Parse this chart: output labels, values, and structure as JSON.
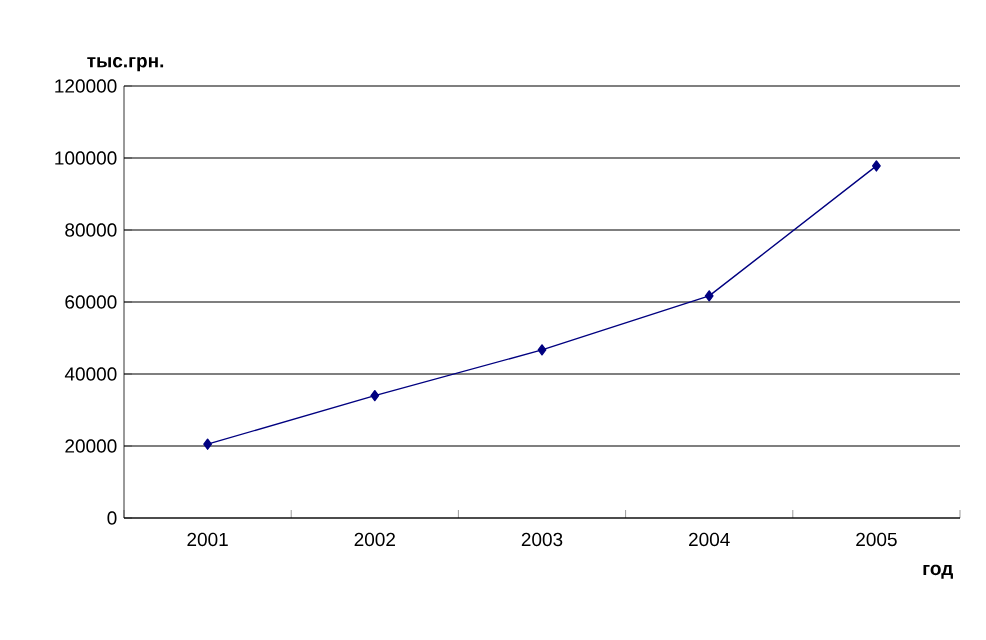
{
  "chart_data": {
    "type": "line",
    "xlabel": "год",
    "ylabel": "тыс.грн.",
    "categories": [
      "2001",
      "2002",
      "2003",
      "2004",
      "2005"
    ],
    "series": [
      {
        "color": "#000080",
        "values": [
          20500,
          34000,
          46700,
          61700,
          97800
        ]
      }
    ],
    "ylim": [
      0,
      120000
    ],
    "yticks": [
      0,
      20000,
      40000,
      60000,
      80000,
      100000,
      120000
    ],
    "grid": "y",
    "marker": "diamond",
    "line_style": "solid"
  }
}
